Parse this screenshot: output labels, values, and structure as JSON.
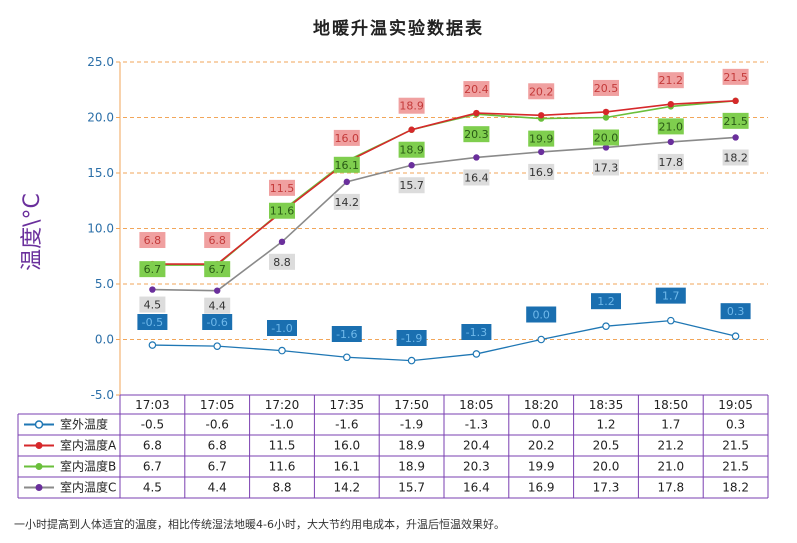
{
  "title": "地暖升温实验数据表",
  "footnote": "一小时提高到人体适宜的温度，相比传统湿法地暖4-6小时，大大节约用电成本，升温后恒温效果好。",
  "chart_data": {
    "type": "line",
    "title": "地暖升温实验数据表",
    "ylabel": "温度\\°C",
    "xlabel": "",
    "ylim": [
      -5.0,
      25.0
    ],
    "yticks": [
      "25.0",
      "20.0",
      "15.0",
      "10.0",
      "5.0",
      "0.0",
      "-5.0"
    ],
    "grid": true,
    "legend": "data-table-below",
    "categories": [
      "17:03",
      "17:05",
      "17:20",
      "17:35",
      "17:50",
      "18:05",
      "18:20",
      "18:35",
      "18:50",
      "19:05"
    ],
    "series": [
      {
        "name": "室外温度",
        "color": "#1f77b4",
        "marker": "hollow-circle",
        "label_color": "#1a6fb0",
        "values": [
          -0.5,
          -0.6,
          -1.0,
          -1.6,
          -1.9,
          -1.3,
          0.0,
          1.2,
          1.7,
          0.3
        ],
        "labels": [
          "-0.5",
          "-0.6",
          "-1.0",
          "-1.6",
          "-1.9",
          "-1.3",
          "0.0",
          "1.2",
          "1.7",
          "0.3"
        ]
      },
      {
        "name": "室内温度A",
        "color": "#d6282b",
        "marker": "circle",
        "label_color": "#f0a0a0",
        "values": [
          6.8,
          6.8,
          11.5,
          16.0,
          18.9,
          20.4,
          20.2,
          20.5,
          21.2,
          21.5
        ],
        "labels": [
          "6.8",
          "6.8",
          "11.5",
          "16.0",
          "18.9",
          "20.4",
          "20.2",
          "20.5",
          "21.2",
          "21.5"
        ]
      },
      {
        "name": "室内温度B",
        "color": "#6abf3b",
        "marker": "circle",
        "label_color": "#7fce4e",
        "values": [
          6.7,
          6.7,
          11.6,
          16.1,
          18.9,
          20.3,
          19.9,
          20.0,
          21.0,
          21.5
        ],
        "labels": [
          "6.7",
          "6.7",
          "11.6",
          "16.1",
          "18.9",
          "20.3",
          "19.9",
          "20.0",
          "21.0",
          "21.5"
        ]
      },
      {
        "name": "室内温度C",
        "color": "#8a8a8a",
        "marker": "circle-purple",
        "label_color": "#dcdcdc",
        "values": [
          4.5,
          4.4,
          8.8,
          14.2,
          15.7,
          16.4,
          16.9,
          17.3,
          17.8,
          18.2
        ],
        "labels": [
          "4.5",
          "4.4",
          "8.8",
          "14.2",
          "15.7",
          "16.4",
          "16.9",
          "17.3",
          "17.8",
          "18.2"
        ]
      }
    ]
  }
}
